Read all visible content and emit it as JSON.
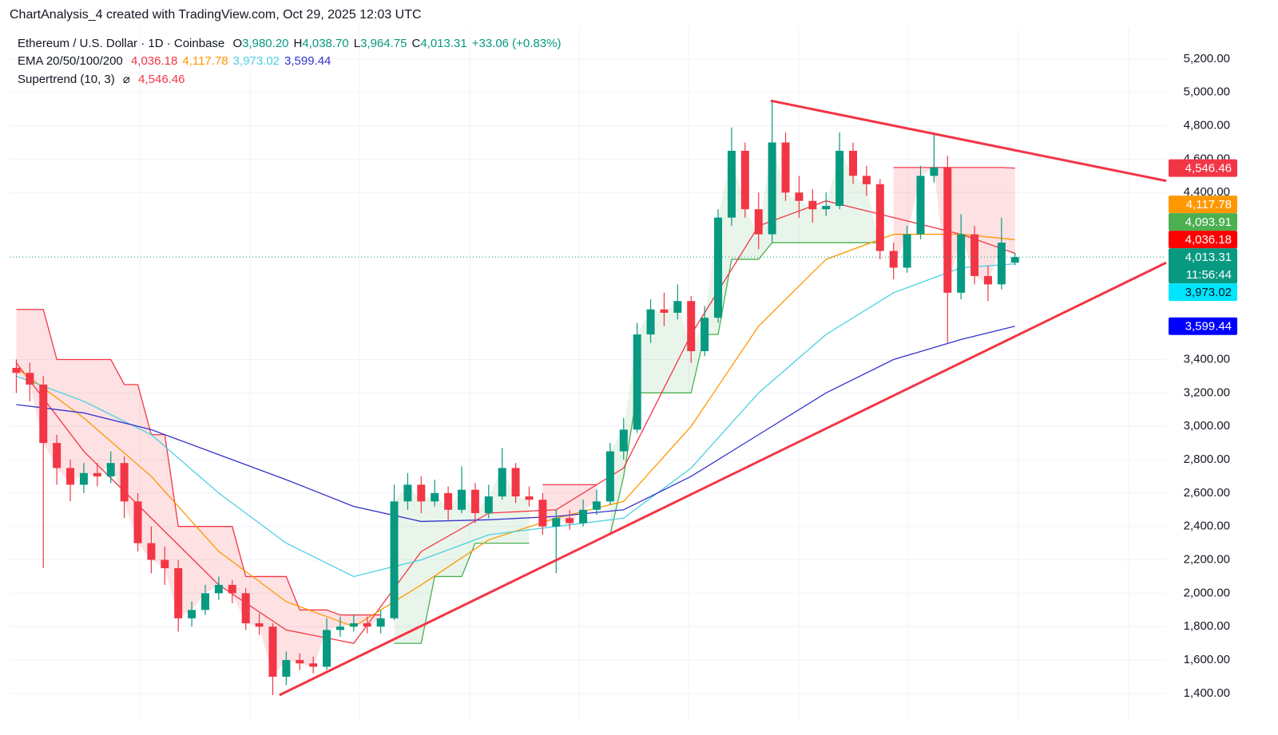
{
  "header": {
    "watermark": "ChartAnalysis_4 created with TradingView.com, Oct 29, 2025 12:03 UTC"
  },
  "chart_data": {
    "type": "candlestick",
    "title": "Ethereum / U.S. Dollar · 1D · Coinbase",
    "ohlc_legend": [
      {
        "label": "O",
        "value": "3,980.20"
      },
      {
        "label": "H",
        "value": "4,038.70"
      },
      {
        "label": "L",
        "value": "3,964.75"
      },
      {
        "label": "C",
        "value": "4,013.31"
      }
    ],
    "change": "+33.06 (+0.83%)",
    "up_color": "#089981",
    "down_color": "#f23645",
    "candles": [
      [
        3350,
        3400,
        3200,
        3320
      ],
      [
        3320,
        3380,
        3150,
        3250
      ],
      [
        3250,
        3300,
        2150,
        2900
      ],
      [
        2900,
        2950,
        2650,
        2750
      ],
      [
        2750,
        2800,
        2550,
        2650
      ],
      [
        2650,
        2780,
        2600,
        2720
      ],
      [
        2720,
        2780,
        2640,
        2700
      ],
      [
        2700,
        2850,
        2660,
        2780
      ],
      [
        2780,
        2820,
        2450,
        2550
      ],
      [
        2550,
        2600,
        2250,
        2300
      ],
      [
        2300,
        2400,
        2120,
        2200
      ],
      [
        2200,
        2280,
        2050,
        2150
      ],
      [
        2150,
        2200,
        1770,
        1850
      ],
      [
        1850,
        1950,
        1800,
        1900
      ],
      [
        1900,
        2050,
        1870,
        2000
      ],
      [
        2000,
        2100,
        1960,
        2050
      ],
      [
        2050,
        2080,
        1940,
        2000
      ],
      [
        2000,
        2030,
        1780,
        1820
      ],
      [
        1820,
        1880,
        1750,
        1800
      ],
      [
        1800,
        1820,
        1390,
        1500
      ],
      [
        1500,
        1650,
        1450,
        1600
      ],
      [
        1600,
        1640,
        1540,
        1580
      ],
      [
        1580,
        1620,
        1520,
        1560
      ],
      [
        1560,
        1850,
        1540,
        1780
      ],
      [
        1780,
        1860,
        1740,
        1800
      ],
      [
        1800,
        1870,
        1770,
        1820
      ],
      [
        1820,
        1860,
        1760,
        1800
      ],
      [
        1800,
        1900,
        1760,
        1850
      ],
      [
        1850,
        2650,
        1840,
        2550
      ],
      [
        2550,
        2720,
        2500,
        2650
      ],
      [
        2650,
        2700,
        2480,
        2550
      ],
      [
        2550,
        2680,
        2520,
        2600
      ],
      [
        2600,
        2640,
        2440,
        2500
      ],
      [
        2500,
        2760,
        2480,
        2620
      ],
      [
        2620,
        2660,
        2420,
        2480
      ],
      [
        2480,
        2650,
        2450,
        2580
      ],
      [
        2580,
        2870,
        2560,
        2750
      ],
      [
        2750,
        2780,
        2540,
        2580
      ],
      [
        2580,
        2640,
        2520,
        2560
      ],
      [
        2560,
        2600,
        2350,
        2400
      ],
      [
        2400,
        2500,
        2120,
        2450
      ],
      [
        2450,
        2500,
        2380,
        2420
      ],
      [
        2420,
        2560,
        2400,
        2500
      ],
      [
        2500,
        2620,
        2470,
        2550
      ],
      [
        2550,
        2900,
        2530,
        2850
      ],
      [
        2850,
        3050,
        2800,
        2980
      ],
      [
        2980,
        3620,
        2960,
        3550
      ],
      [
        3550,
        3760,
        3500,
        3700
      ],
      [
        3700,
        3800,
        3600,
        3680
      ],
      [
        3680,
        3850,
        3640,
        3750
      ],
      [
        3750,
        3780,
        3380,
        3450
      ],
      [
        3450,
        3720,
        3420,
        3650
      ],
      [
        3650,
        4300,
        3620,
        4250
      ],
      [
        4250,
        4790,
        4200,
        4650
      ],
      [
        4650,
        4700,
        4250,
        4300
      ],
      [
        4300,
        4400,
        4060,
        4150
      ],
      [
        4150,
        4950,
        4100,
        4700
      ],
      [
        4700,
        4760,
        4350,
        4400
      ],
      [
        4400,
        4500,
        4250,
        4350
      ],
      [
        4350,
        4420,
        4220,
        4300
      ],
      [
        4300,
        4400,
        4260,
        4320
      ],
      [
        4320,
        4760,
        4300,
        4650
      ],
      [
        4650,
        4700,
        4450,
        4500
      ],
      [
        4500,
        4560,
        4380,
        4450
      ],
      [
        4450,
        4480,
        4000,
        4050
      ],
      [
        4050,
        4100,
        3880,
        3950
      ],
      [
        3950,
        4200,
        3920,
        4150
      ],
      [
        4150,
        4560,
        4120,
        4500
      ],
      [
        4500,
        4760,
        4460,
        4550
      ],
      [
        4550,
        4620,
        3500,
        3800
      ],
      [
        3800,
        4270,
        3760,
        4150
      ],
      [
        4150,
        4200,
        3850,
        3900
      ],
      [
        3900,
        3960,
        3750,
        3850
      ],
      [
        3850,
        4250,
        3820,
        4100
      ],
      [
        3980.2,
        4038.7,
        3964.75,
        4013.31
      ]
    ],
    "xlim": [
      -0.5,
      85.2
    ],
    "ylim": [
      1237,
      5386
    ],
    "yticks": [
      {
        "value": 5200,
        "label": "5,200.00"
      },
      {
        "value": 5000,
        "label": "5,000.00"
      },
      {
        "value": 4800,
        "label": "4,800.00"
      },
      {
        "value": 4600,
        "label": "4,600.00"
      },
      {
        "value": 4400,
        "label": "4,400.00"
      },
      {
        "value": 3400,
        "label": "3,400.00"
      },
      {
        "value": 3200,
        "label": "3,200.00"
      },
      {
        "value": 3000,
        "label": "3,000.00"
      },
      {
        "value": 2800,
        "label": "2,800.00"
      },
      {
        "value": 2600,
        "label": "2,600.00"
      },
      {
        "value": 2400,
        "label": "2,400.00"
      },
      {
        "value": 2200,
        "label": "2,200.00"
      },
      {
        "value": 2000,
        "label": "2,000.00"
      },
      {
        "value": 1800,
        "label": "1,800.00"
      },
      {
        "value": 1600,
        "label": "1,600.00"
      },
      {
        "value": 1400,
        "label": "1,400.00"
      }
    ],
    "current_price": 4013.31,
    "ema": {
      "label": "EMA 20/50/100/200",
      "x": [
        0,
        5,
        10,
        15,
        20,
        25,
        30,
        35,
        40,
        45,
        50,
        55,
        60,
        65,
        70,
        74
      ],
      "series": [
        {
          "color": "#f23645",
          "value_label": "4,036.18",
          "values": [
            3380,
            2850,
            2450,
            2050,
            1780,
            1700,
            2250,
            2480,
            2500,
            2750,
            3550,
            4200,
            4350,
            4250,
            4150,
            4036.18
          ]
        },
        {
          "color": "#ff9800",
          "value_label": "4,117.78",
          "values": [
            3350,
            3050,
            2700,
            2250,
            1950,
            1800,
            2050,
            2320,
            2450,
            2550,
            3000,
            3600,
            4000,
            4150,
            4150,
            4117.78
          ]
        },
        {
          "color": "#4dd0e1",
          "value_label": "3,973.02",
          "values": [
            3300,
            3150,
            2950,
            2600,
            2300,
            2100,
            2200,
            2350,
            2400,
            2450,
            2750,
            3200,
            3550,
            3800,
            3950,
            3973.02
          ]
        },
        {
          "color": "#3333cc",
          "value_label": "3,599.44",
          "values": [
            3130,
            3080,
            2980,
            2830,
            2680,
            2520,
            2430,
            2440,
            2460,
            2500,
            2700,
            2950,
            3200,
            3400,
            3520,
            3599.44
          ]
        }
      ]
    },
    "supertrend": {
      "label": "Supertrend (10, 3)",
      "symbol": "⌀",
      "value_label": "4,546.46",
      "down_color": "#f23645",
      "up_color": "#4caf50",
      "down": [
        3700,
        3700,
        3700,
        3400,
        3400,
        3400,
        3400,
        3400,
        3250,
        3250,
        2950,
        2950,
        2400,
        2400,
        2400,
        2400,
        2400,
        2100,
        2100,
        2100,
        2100,
        1900,
        1900,
        1900,
        1870,
        1870,
        1870,
        1870,
        null,
        null,
        null,
        null,
        null,
        null,
        null,
        null,
        null,
        null,
        null,
        2650,
        2650,
        2650,
        2650,
        2650,
        null,
        null,
        null,
        null,
        null,
        null,
        null,
        null,
        null,
        null,
        null,
        null,
        null,
        null,
        null,
        null,
        null,
        null,
        null,
        null,
        null,
        4550,
        4550,
        4550,
        4550,
        4550,
        4550,
        4550,
        4550,
        4550,
        4546.46
      ],
      "up": [
        null,
        null,
        null,
        null,
        null,
        null,
        null,
        null,
        null,
        null,
        null,
        null,
        null,
        null,
        null,
        null,
        null,
        null,
        null,
        null,
        null,
        null,
        null,
        null,
        null,
        null,
        null,
        null,
        1700,
        1700,
        1700,
        2100,
        2100,
        2100,
        2300,
        2300,
        2300,
        2300,
        2300,
        null,
        null,
        null,
        null,
        null,
        2350,
        2700,
        3200,
        3200,
        3200,
        3200,
        3200,
        3550,
        3550,
        4000,
        4000,
        4000,
        4100,
        4100,
        4100,
        4100,
        4100,
        4100,
        4100,
        4100,
        4100,
        null,
        null,
        null,
        null,
        null,
        null,
        null,
        null,
        null,
        null
      ]
    },
    "trendlines": [
      {
        "color": "#f23645",
        "x": [
          55.9,
          85.2
        ],
        "values": [
          4950,
          4470
        ]
      },
      {
        "color": "#f23645",
        "x": [
          19.5,
          85.2
        ],
        "values": [
          1390,
          3980
        ]
      }
    ],
    "price_badges": [
      {
        "value": 4546.46,
        "label": "4,546.46",
        "color": "#f23645",
        "text_color": "#ffffff"
      },
      {
        "value": 4117.78,
        "label": "4,117.78",
        "color": "#ff9800",
        "text_color": "#ffffff"
      },
      {
        "value": 4093.91,
        "label": "4,093.91",
        "color": "#4caf50",
        "text_color": "#ffffff"
      },
      {
        "value": 4036.18,
        "label": "4,036.18",
        "color": "#ff0000",
        "text_color": "#ffffff"
      },
      {
        "value": 4013.31,
        "label": "4,013.31",
        "countdown": "11:56:44",
        "color": "#089981",
        "text_color": "#ffffff"
      },
      {
        "value": 3973.02,
        "label": "3,973.02",
        "color": "#00e5ff",
        "text_color": "#131722"
      },
      {
        "value": 3599.44,
        "label": "3,599.44",
        "color": "#0000ff",
        "text_color": "#ffffff"
      }
    ]
  }
}
